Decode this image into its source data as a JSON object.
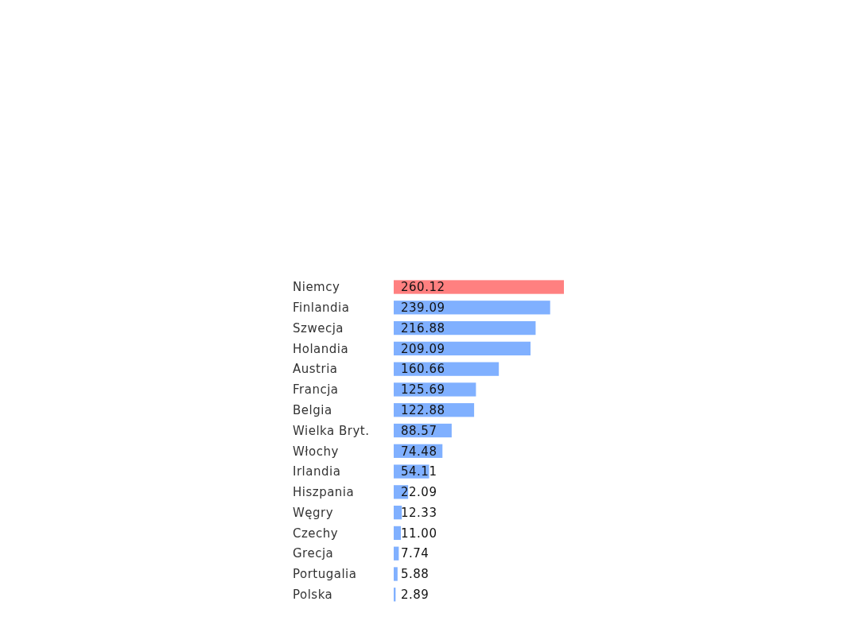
{
  "chart_data": {
    "type": "bar",
    "orientation": "horizontal",
    "categories": [
      "Niemcy",
      "Finlandia",
      "Szwecja",
      "Holandia",
      "Austria",
      "Francja",
      "Belgia",
      "Wielka Bryt.",
      "Włochy",
      "Irlandia",
      "Hiszpania",
      "Węgry",
      "Czechy",
      "Grecja",
      "Portugalia",
      "Polska"
    ],
    "values": [
      260.12,
      239.09,
      216.88,
      209.09,
      160.66,
      125.69,
      122.88,
      88.57,
      74.48,
      54.11,
      22.09,
      12.33,
      11.0,
      7.74,
      5.88,
      2.89
    ],
    "value_labels": [
      "260.12",
      "239.09",
      "216.88",
      "209.09",
      "160.66",
      "125.69",
      "122.88",
      "88.57",
      "74.48",
      "54.11",
      "22.09",
      "12.33",
      "11.00",
      "7.74",
      "5.88",
      "2.89"
    ],
    "colors": [
      "#ff8080",
      "#80b0ff",
      "#80b0ff",
      "#80b0ff",
      "#80b0ff",
      "#80b0ff",
      "#80b0ff",
      "#80b0ff",
      "#80b0ff",
      "#80b0ff",
      "#80b0ff",
      "#80b0ff",
      "#80b0ff",
      "#80b0ff",
      "#80b0ff",
      "#80b0ff"
    ],
    "tick_labels": "y"
  }
}
